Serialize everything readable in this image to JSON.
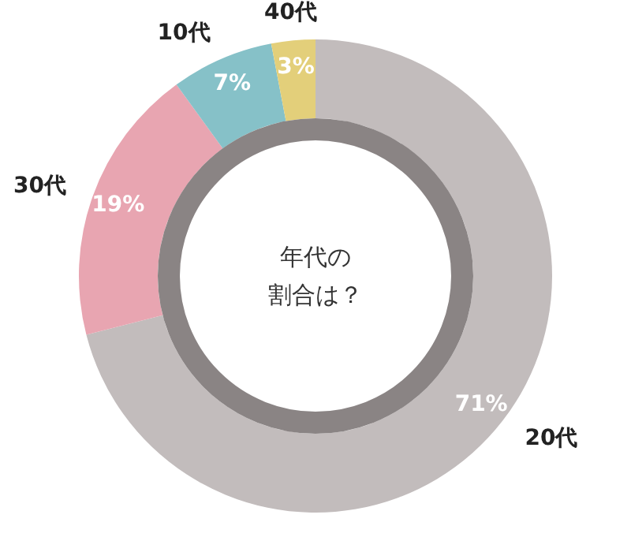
{
  "chart_data": {
    "type": "donut",
    "title": "年代の割合は？",
    "categories": [
      "20代",
      "30代",
      "10代",
      "40代"
    ],
    "values": [
      71,
      19,
      7,
      3
    ],
    "colors": [
      "#c2bcbc",
      "#e8a5b1",
      "#86c1c8",
      "#e3cf7a"
    ],
    "value_labels": [
      "71%",
      "19%",
      "7%",
      "3%"
    ]
  }
}
